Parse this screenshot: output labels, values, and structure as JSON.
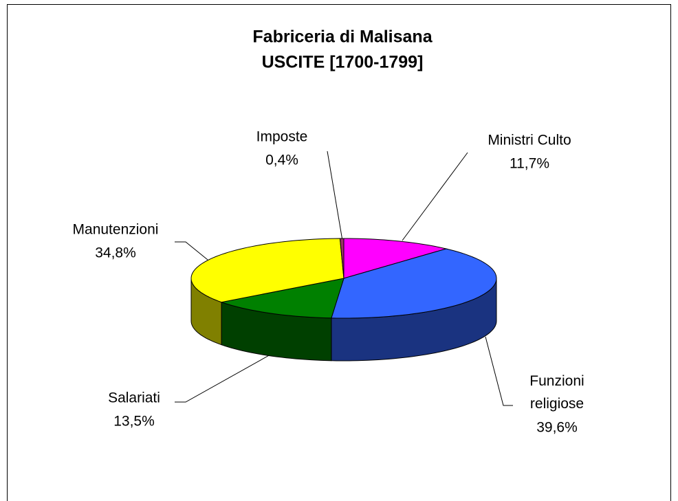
{
  "chart_data": {
    "type": "pie3d",
    "title": "Fabriceria di Malisana",
    "subtitle": "USCITE [1700-1799]",
    "categories": [
      "Ministri Culto",
      "Funzioni religiose",
      "Salariati",
      "Manutenzioni",
      "Imposte"
    ],
    "values": [
      11.7,
      39.6,
      13.5,
      34.8,
      0.4
    ],
    "value_labels": [
      "11,7%",
      "39,6%",
      "13,5%",
      "34,8%",
      "0,4%"
    ],
    "colors": [
      "#ff00ff",
      "#3366ff",
      "#008000",
      "#ffff00",
      "#993366"
    ]
  }
}
